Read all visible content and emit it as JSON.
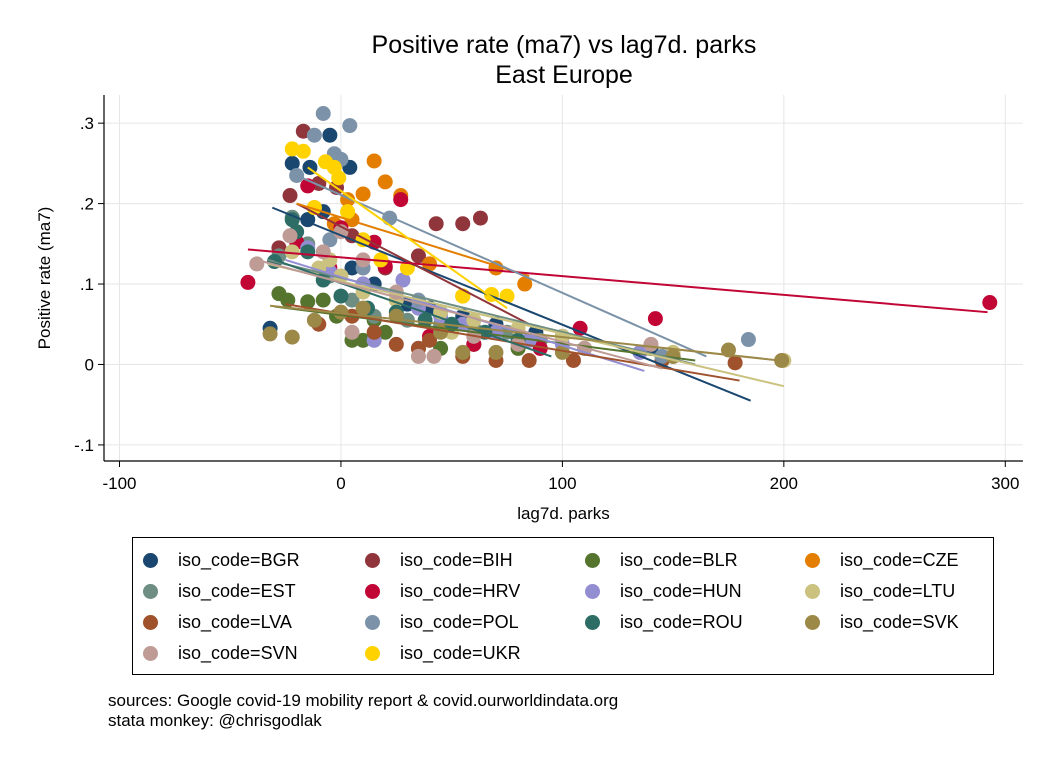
{
  "chart_data": {
    "type": "scatter",
    "title": "Positive rate (ma7) vs lag7d. parks",
    "subtitle": "East Europe",
    "xlabel": "lag7d. parks",
    "ylabel": "Positive rate (ma7)",
    "xlim": [
      -107,
      308
    ],
    "ylim": [
      -0.12,
      0.335
    ],
    "xticks": [
      -100,
      0,
      100,
      200,
      300
    ],
    "xtick_labels": [
      "-100",
      "0",
      "100",
      "200",
      "300"
    ],
    "yticks": [
      -0.1,
      0,
      0.1,
      0.2,
      0.3
    ],
    "ytick_labels": [
      "-.1",
      "0",
      ".1",
      ".2",
      ".3"
    ],
    "grid": true,
    "legend": "bottom",
    "series": [
      {
        "name": "iso_code=BGR",
        "color": "#1a476f",
        "points": [
          [
            -22,
            0.25
          ],
          [
            -14,
            0.245
          ],
          [
            -5,
            0.285
          ],
          [
            4,
            0.245
          ],
          [
            -8,
            0.19
          ],
          [
            -15,
            0.18
          ],
          [
            -32,
            0.045
          ],
          [
            5,
            0.12
          ],
          [
            15,
            0.1
          ],
          [
            30,
            0.075
          ],
          [
            40,
            0.07
          ],
          [
            55,
            0.06
          ],
          [
            70,
            0.05
          ],
          [
            88,
            0.04
          ],
          [
            100,
            0.035
          ],
          [
            140,
            0.02
          ]
        ],
        "fit": [
          [
            -31,
            0.195
          ],
          [
            185,
            -0.045
          ]
        ]
      },
      {
        "name": "iso_code=BIH",
        "color": "#90353b",
        "points": [
          [
            -17,
            0.29
          ],
          [
            -10,
            0.225
          ],
          [
            -23,
            0.21
          ],
          [
            -28,
            0.145
          ],
          [
            43,
            0.175
          ],
          [
            55,
            0.175
          ],
          [
            63,
            0.182
          ],
          [
            35,
            0.135
          ],
          [
            20,
            0.12
          ],
          [
            5,
            0.16
          ],
          [
            -2,
            0.22
          ],
          [
            10,
            0.1
          ]
        ],
        "fit": [
          [
            -20,
            0.2
          ],
          [
            85,
            0.05
          ]
        ]
      },
      {
        "name": "iso_code=BLR",
        "color": "#55752f",
        "points": [
          [
            -28,
            0.088
          ],
          [
            -24,
            0.08
          ],
          [
            -15,
            0.078
          ],
          [
            -8,
            0.08
          ],
          [
            5,
            0.03
          ],
          [
            10,
            0.03
          ],
          [
            20,
            0.04
          ],
          [
            35,
            0.02
          ],
          [
            45,
            0.02
          ],
          [
            60,
            0.025
          ],
          [
            80,
            0.02
          ],
          [
            -2,
            0.06
          ],
          [
            15,
            0.055
          ]
        ],
        "fit": [
          [
            -30,
            0.072
          ],
          [
            160,
            0.005
          ]
        ]
      },
      {
        "name": "iso_code=CZE",
        "color": "#e37e00",
        "points": [
          [
            15,
            0.253
          ],
          [
            20,
            0.227
          ],
          [
            27,
            0.21
          ],
          [
            10,
            0.212
          ],
          [
            3,
            0.205
          ],
          [
            -3,
            0.175
          ],
          [
            -12,
            0.195
          ],
          [
            40,
            0.125
          ],
          [
            55,
            0.085
          ],
          [
            70,
            0.12
          ],
          [
            83,
            0.1
          ],
          [
            5,
            0.18
          ]
        ],
        "fit": [
          [
            -20,
            0.2
          ],
          [
            85,
            0.11
          ]
        ]
      },
      {
        "name": "iso_code=EST",
        "color": "#6e8e84",
        "points": [
          [
            -22,
            0.183
          ],
          [
            -15,
            0.15
          ],
          [
            -28,
            0.135
          ],
          [
            -5,
            0.11
          ],
          [
            5,
            0.08
          ],
          [
            15,
            0.06
          ],
          [
            30,
            0.055
          ],
          [
            45,
            0.05
          ],
          [
            60,
            0.045
          ],
          [
            75,
            0.04
          ],
          [
            90,
            0.03
          ],
          [
            150,
            0.01
          ],
          [
            110,
            0.02
          ]
        ],
        "fit": [
          [
            -33,
            0.13
          ],
          [
            160,
            0.0
          ]
        ]
      },
      {
        "name": "iso_code=HRV",
        "color": "#c10534",
        "points": [
          [
            -42,
            0.102
          ],
          [
            -20,
            0.152
          ],
          [
            -15,
            0.222
          ],
          [
            15,
            0.152
          ],
          [
            27,
            0.205
          ],
          [
            20,
            0.122
          ],
          [
            -5,
            0.12
          ],
          [
            40,
            0.035
          ],
          [
            60,
            0.025
          ],
          [
            90,
            0.02
          ],
          [
            108,
            0.045
          ],
          [
            142,
            0.057
          ],
          [
            293,
            0.077
          ],
          [
            0,
            0.17
          ]
        ],
        "fit": [
          [
            -42,
            0.143
          ],
          [
            292,
            0.065
          ]
        ]
      },
      {
        "name": "iso_code=HUN",
        "color": "#938dd2",
        "points": [
          [
            -15,
            0.145
          ],
          [
            -5,
            0.115
          ],
          [
            10,
            0.1
          ],
          [
            28,
            0.105
          ],
          [
            35,
            0.07
          ],
          [
            45,
            0.06
          ],
          [
            55,
            0.05
          ],
          [
            70,
            0.04
          ],
          [
            85,
            0.03
          ],
          [
            100,
            0.025
          ],
          [
            135,
            0.015
          ],
          [
            15,
            0.03
          ]
        ],
        "fit": [
          [
            -25,
            0.13
          ],
          [
            137,
            -0.008
          ]
        ]
      },
      {
        "name": "iso_code=LTU",
        "color": "#cac27e",
        "points": [
          [
            -22,
            0.14
          ],
          [
            -10,
            0.12
          ],
          [
            -5,
            0.13
          ],
          [
            0,
            0.11
          ],
          [
            10,
            0.09
          ],
          [
            25,
            0.08
          ],
          [
            45,
            0.065
          ],
          [
            60,
            0.055
          ],
          [
            80,
            0.045
          ],
          [
            100,
            0.035
          ],
          [
            150,
            0.015
          ],
          [
            200,
            0.005
          ],
          [
            50,
            0.04
          ]
        ],
        "fit": [
          [
            -33,
            0.125
          ],
          [
            200,
            -0.027
          ]
        ]
      },
      {
        "name": "iso_code=LVA",
        "color": "#a0522d",
        "points": [
          [
            -10,
            0.05
          ],
          [
            5,
            0.06
          ],
          [
            15,
            0.04
          ],
          [
            25,
            0.025
          ],
          [
            35,
            0.02
          ],
          [
            55,
            0.01
          ],
          [
            70,
            0.005
          ],
          [
            85,
            0.005
          ],
          [
            105,
            0.005
          ],
          [
            145,
            0.005
          ],
          [
            178,
            0.002
          ],
          [
            40,
            0.03
          ]
        ],
        "fit": [
          [
            -25,
            0.075
          ],
          [
            180,
            -0.02
          ]
        ]
      },
      {
        "name": "iso_code=POL",
        "color": "#7b92a8",
        "points": [
          [
            -8,
            0.312
          ],
          [
            4,
            0.297
          ],
          [
            -3,
            0.262
          ],
          [
            0,
            0.255
          ],
          [
            -12,
            0.285
          ],
          [
            -20,
            0.235
          ],
          [
            22,
            0.182
          ],
          [
            -5,
            0.155
          ],
          [
            10,
            0.12
          ],
          [
            35,
            0.08
          ],
          [
            184,
            0.031
          ],
          [
            145,
            0.01
          ]
        ],
        "fit": [
          [
            -20,
            0.235
          ],
          [
            165,
            0.01
          ]
        ]
      },
      {
        "name": "iso_code=ROU",
        "color": "#2d6d66",
        "points": [
          [
            -22,
            0.18
          ],
          [
            -30,
            0.128
          ],
          [
            -15,
            0.14
          ],
          [
            -8,
            0.105
          ],
          [
            0,
            0.085
          ],
          [
            12,
            0.07
          ],
          [
            25,
            0.065
          ],
          [
            38,
            0.055
          ],
          [
            50,
            0.05
          ],
          [
            65,
            0.04
          ],
          [
            80,
            0.03
          ],
          [
            -20,
            0.165
          ]
        ],
        "fit": [
          [
            -30,
            0.13
          ],
          [
            95,
            0.01
          ]
        ]
      },
      {
        "name": "iso_code=SVK",
        "color": "#9c8847",
        "points": [
          [
            -32,
            0.038
          ],
          [
            -22,
            0.034
          ],
          [
            -12,
            0.055
          ],
          [
            0,
            0.065
          ],
          [
            10,
            0.07
          ],
          [
            25,
            0.06
          ],
          [
            45,
            0.04
          ],
          [
            55,
            0.015
          ],
          [
            70,
            0.015
          ],
          [
            100,
            0.015
          ],
          [
            150,
            0.01
          ],
          [
            175,
            0.018
          ],
          [
            199,
            0.005
          ]
        ],
        "fit": [
          [
            -32,
            0.073
          ],
          [
            198,
            0.005
          ]
        ]
      },
      {
        "name": "iso_code=SVN",
        "color": "#bf9b95",
        "points": [
          [
            -23,
            0.16
          ],
          [
            -38,
            0.125
          ],
          [
            -8,
            0.14
          ],
          [
            0,
            0.165
          ],
          [
            10,
            0.13
          ],
          [
            25,
            0.09
          ],
          [
            35,
            0.01
          ],
          [
            42,
            0.01
          ],
          [
            60,
            0.035
          ],
          [
            80,
            0.025
          ],
          [
            110,
            0.02
          ],
          [
            140,
            0.025
          ],
          [
            5,
            0.04
          ]
        ],
        "fit": [
          [
            -38,
            0.13
          ],
          [
            145,
            -0.005
          ]
        ]
      },
      {
        "name": "iso_code=UKR",
        "color": "#ffd200",
        "points": [
          [
            -22,
            0.268
          ],
          [
            -17,
            0.265
          ],
          [
            -7,
            0.252
          ],
          [
            -3,
            0.245
          ],
          [
            -1,
            0.232
          ],
          [
            3,
            0.19
          ],
          [
            10,
            0.155
          ],
          [
            18,
            0.13
          ],
          [
            30,
            0.12
          ],
          [
            55,
            0.085
          ],
          [
            68,
            0.087
          ],
          [
            75,
            0.085
          ],
          [
            -12,
            0.195
          ]
        ],
        "fit": [
          [
            -15,
            0.245
          ],
          [
            75,
            0.07
          ]
        ]
      }
    ]
  },
  "footnotes": {
    "line1": "sources: Google covid-19 mobility report & covid.ourworldindata.org",
    "line2": "stata monkey: @chrisgodlak"
  }
}
